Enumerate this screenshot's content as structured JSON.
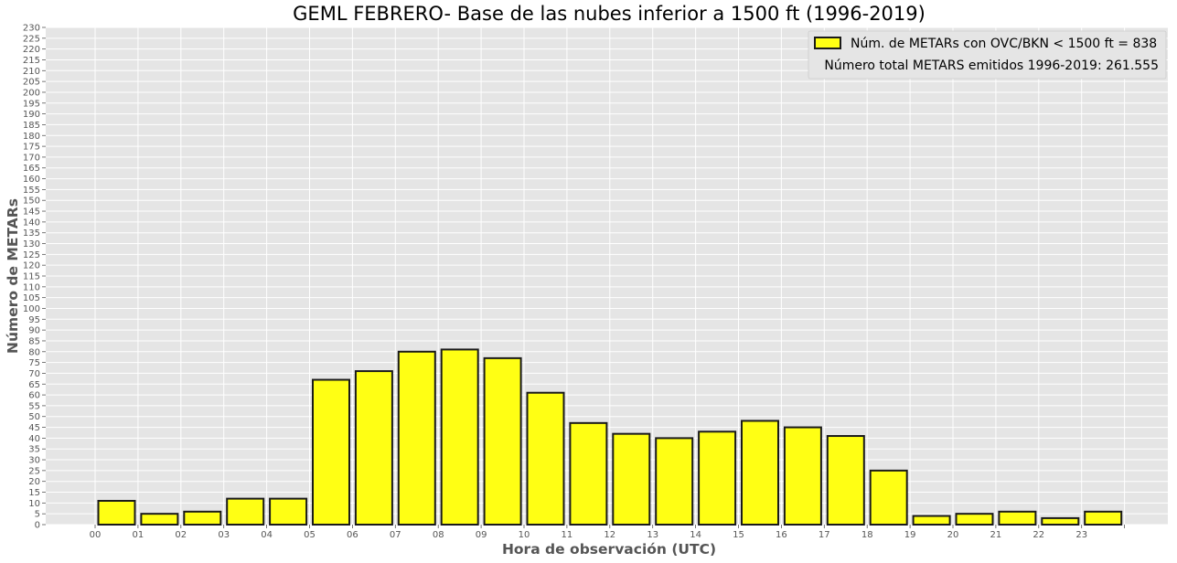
{
  "chart_data": {
    "type": "bar",
    "title": "GEML FEBRERO- Base de las nubes inferior a 1500 ft (1996-2019)",
    "xlabel": "Hora de observación (UTC)",
    "ylabel": "Número de METARs",
    "categories": [
      "00",
      "01",
      "02",
      "03",
      "04",
      "05",
      "06",
      "07",
      "08",
      "09",
      "10",
      "11",
      "12",
      "13",
      "14",
      "15",
      "16",
      "17",
      "18",
      "19",
      "20",
      "21",
      "22",
      "23"
    ],
    "values": [
      11,
      5,
      6,
      12,
      12,
      67,
      71,
      80,
      81,
      77,
      61,
      47,
      42,
      40,
      43,
      48,
      45,
      41,
      25,
      4,
      5,
      6,
      3,
      6
    ],
    "ylim": [
      0,
      230
    ],
    "ytick_step": 5,
    "grid": true,
    "legend": {
      "placement": "top-right",
      "series_label": "Núm. de METARs con OVC/BKN < 1500 ft = 838",
      "note": "Número total METARS emitidos 1996-2019: 261.555"
    },
    "colors": {
      "bar_fill": "#ffff14",
      "bar_edge": "#1a1a1a",
      "plot_background": "#e5e5e5",
      "grid": "#ffffff"
    }
  }
}
